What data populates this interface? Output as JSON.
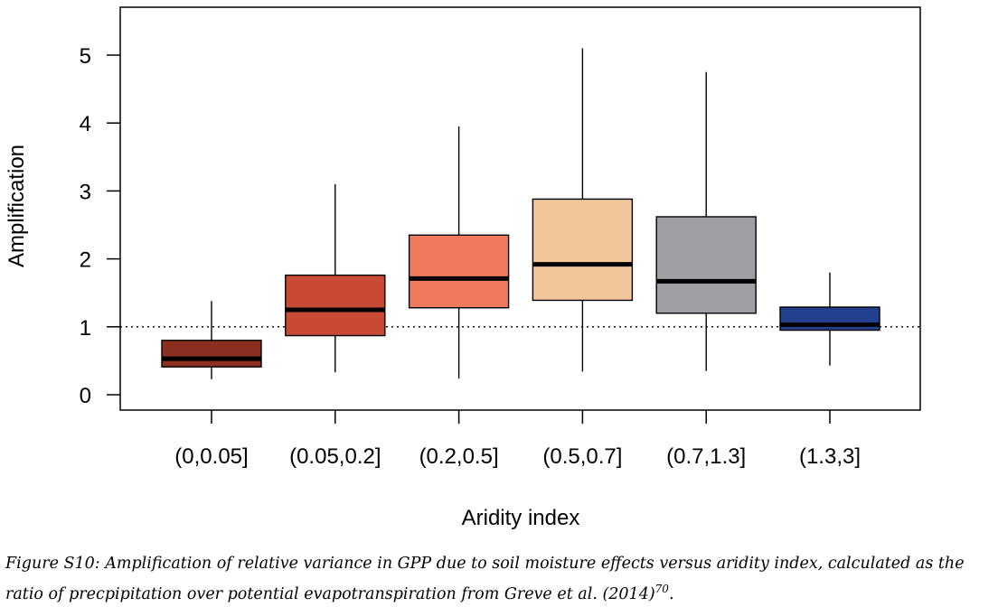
{
  "chart_data": {
    "type": "boxplot",
    "xlabel": "Aridity index",
    "ylabel": "Amplification",
    "ylim": [
      -0.25,
      5.6
    ],
    "y_ticks": [
      0,
      1,
      2,
      3,
      4,
      5
    ],
    "reference_line": {
      "y": 1,
      "style": "dotted"
    },
    "grid": false,
    "categories": [
      "(0,0.05]",
      "(0.05,0.2]",
      "(0.2,0.5]",
      "(0.5,0.7]",
      "(0.7,1.3]",
      "(1.3,3]"
    ],
    "boxes": [
      {
        "whisker_low": 0.23,
        "q1": 0.41,
        "median": 0.53,
        "q3": 0.8,
        "whisker_high": 1.38,
        "color": "#8b3020"
      },
      {
        "whisker_low": 0.33,
        "q1": 0.87,
        "median": 1.25,
        "q3": 1.76,
        "whisker_high": 3.1,
        "color": "#c84a36"
      },
      {
        "whisker_low": 0.24,
        "q1": 1.28,
        "median": 1.71,
        "q3": 2.35,
        "whisker_high": 3.95,
        "color": "#ef7a5c"
      },
      {
        "whisker_low": 0.34,
        "q1": 1.39,
        "median": 1.92,
        "q3": 2.88,
        "whisker_high": 5.1,
        "color": "#f3c59b"
      },
      {
        "whisker_low": 0.35,
        "q1": 1.2,
        "median": 1.67,
        "q3": 2.62,
        "whisker_high": 4.75,
        "color": "#a09ea3"
      },
      {
        "whisker_low": 0.43,
        "q1": 0.95,
        "median": 1.03,
        "q3": 1.29,
        "whisker_high": 1.8,
        "color": "#21418f"
      }
    ]
  },
  "caption": {
    "text": "Figure S10: Amplification of relative variance in GPP due to soil moisture effects versus aridity index, calculated as the ratio of precpipitation over potential evapotranspiration from Greve et al. (2014)",
    "superscript": "70",
    "end": "."
  }
}
